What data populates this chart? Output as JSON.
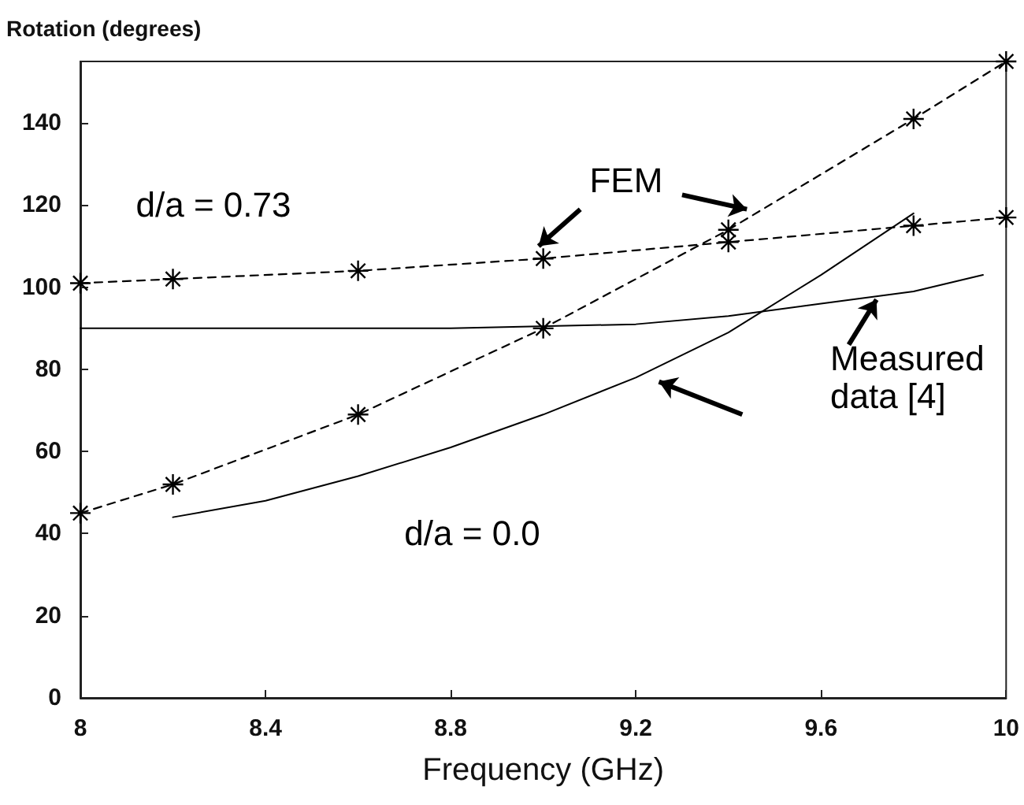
{
  "chart_data": {
    "type": "line",
    "xlabel": "Frequency (GHz)",
    "ylabel": "Rotation (degrees)",
    "xlim": [
      8,
      10
    ],
    "xticks": [
      8,
      8.4,
      8.8,
      9.2,
      9.6,
      10
    ],
    "ylim": [
      0,
      155
    ],
    "yticks": [
      0,
      20,
      40,
      60,
      80,
      100,
      120,
      140
    ],
    "grid": false,
    "series": [
      {
        "color": "#000000",
        "marker": "cross",
        "line_style": "dashed",
        "x": [
          8,
          8.2,
          8.6,
          9,
          9.4,
          9.8,
          10
        ],
        "values": [
          101,
          102,
          104,
          107,
          111,
          115,
          117
        ]
      },
      {
        "color": "#000000",
        "marker": "cross",
        "line_style": "dashed",
        "x": [
          8,
          8.2,
          8.6,
          9,
          9.4,
          9.8,
          10
        ],
        "values": [
          45,
          52,
          69,
          90,
          114,
          141,
          155
        ]
      },
      {
        "color": "#000000",
        "marker": "none",
        "line_style": "solid",
        "x": [
          8,
          8.4,
          8.8,
          9.2,
          9.4,
          9.6,
          9.8,
          9.95
        ],
        "values": [
          90,
          90,
          90,
          91,
          93,
          96,
          99,
          103
        ]
      },
      {
        "color": "#000000",
        "marker": "none",
        "line_style": "solid",
        "x": [
          8.2,
          8.4,
          8.6,
          8.8,
          9,
          9.2,
          9.4,
          9.6,
          9.8
        ],
        "values": [
          44,
          48,
          54,
          61,
          69,
          78,
          89,
          103,
          118
        ]
      }
    ],
    "annotations": [
      "d/a = 0.73",
      {
        "text": "FEM",
        "x": 9.44,
        "y": 119
      },
      {
        "text": "Measured\ndata [4]",
        "x": 9.72,
        "y": 97
      },
      "d/a = 0.0"
    ]
  }
}
